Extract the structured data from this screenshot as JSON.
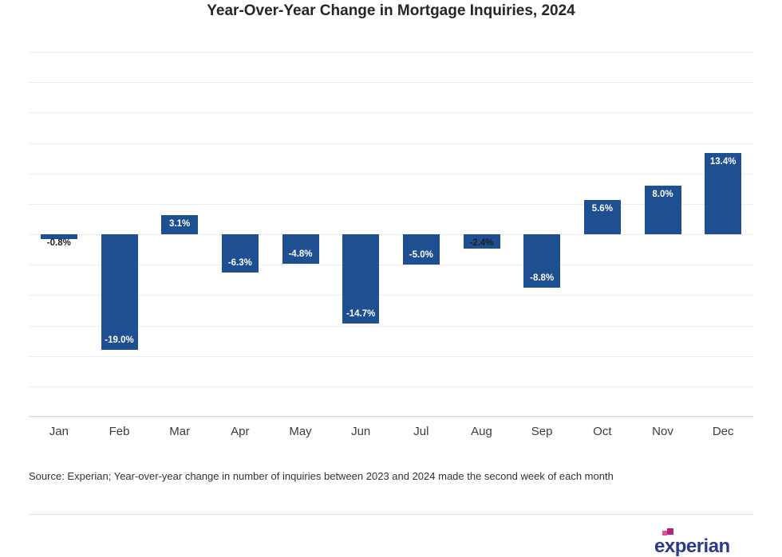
{
  "title": "Year-Over-Year Change in Mortgage Inquiries, 2024",
  "source_note": "Source: Experian; Year-over-year change in number of inquiries between 2023 and 2024 made the second week of each month",
  "logo": {
    "text": "experian"
  },
  "colors": {
    "bar": "#1d4f91",
    "grid": "#ededed",
    "axis_line": "#d9d9d9",
    "label_inside": "#ffffff",
    "label_outside": "#1f1f1f",
    "title_text": "#262626",
    "month_label": "#3c3c3c",
    "logo_text": "#293a8f",
    "logo_dot_dark": "#b0267b",
    "logo_dot_light": "#e8509a"
  },
  "chart_data": {
    "type": "bar",
    "title": "Year-Over-Year Change in Mortgage Inquiries, 2024",
    "categories": [
      "Jan",
      "Feb",
      "Mar",
      "Apr",
      "May",
      "Jun",
      "Jul",
      "Aug",
      "Sep",
      "Oct",
      "Nov",
      "Dec"
    ],
    "values": [
      -0.8,
      -19.0,
      3.1,
      -6.3,
      -4.8,
      -14.7,
      -5.0,
      -2.4,
      -8.8,
      5.6,
      8.0,
      13.4
    ],
    "labels": [
      "-0.8%",
      "-19.0%",
      "3.1%",
      "-6.3%",
      "-4.8%",
      "-14.7%",
      "-5.0%",
      "-2.4%",
      "-8.8%",
      "5.6%",
      "8.0%",
      "13.4%"
    ],
    "xlabel": "",
    "ylabel": "",
    "ylim": [
      -30,
      30
    ],
    "grid_step": 5,
    "grid": true,
    "legend": false
  }
}
